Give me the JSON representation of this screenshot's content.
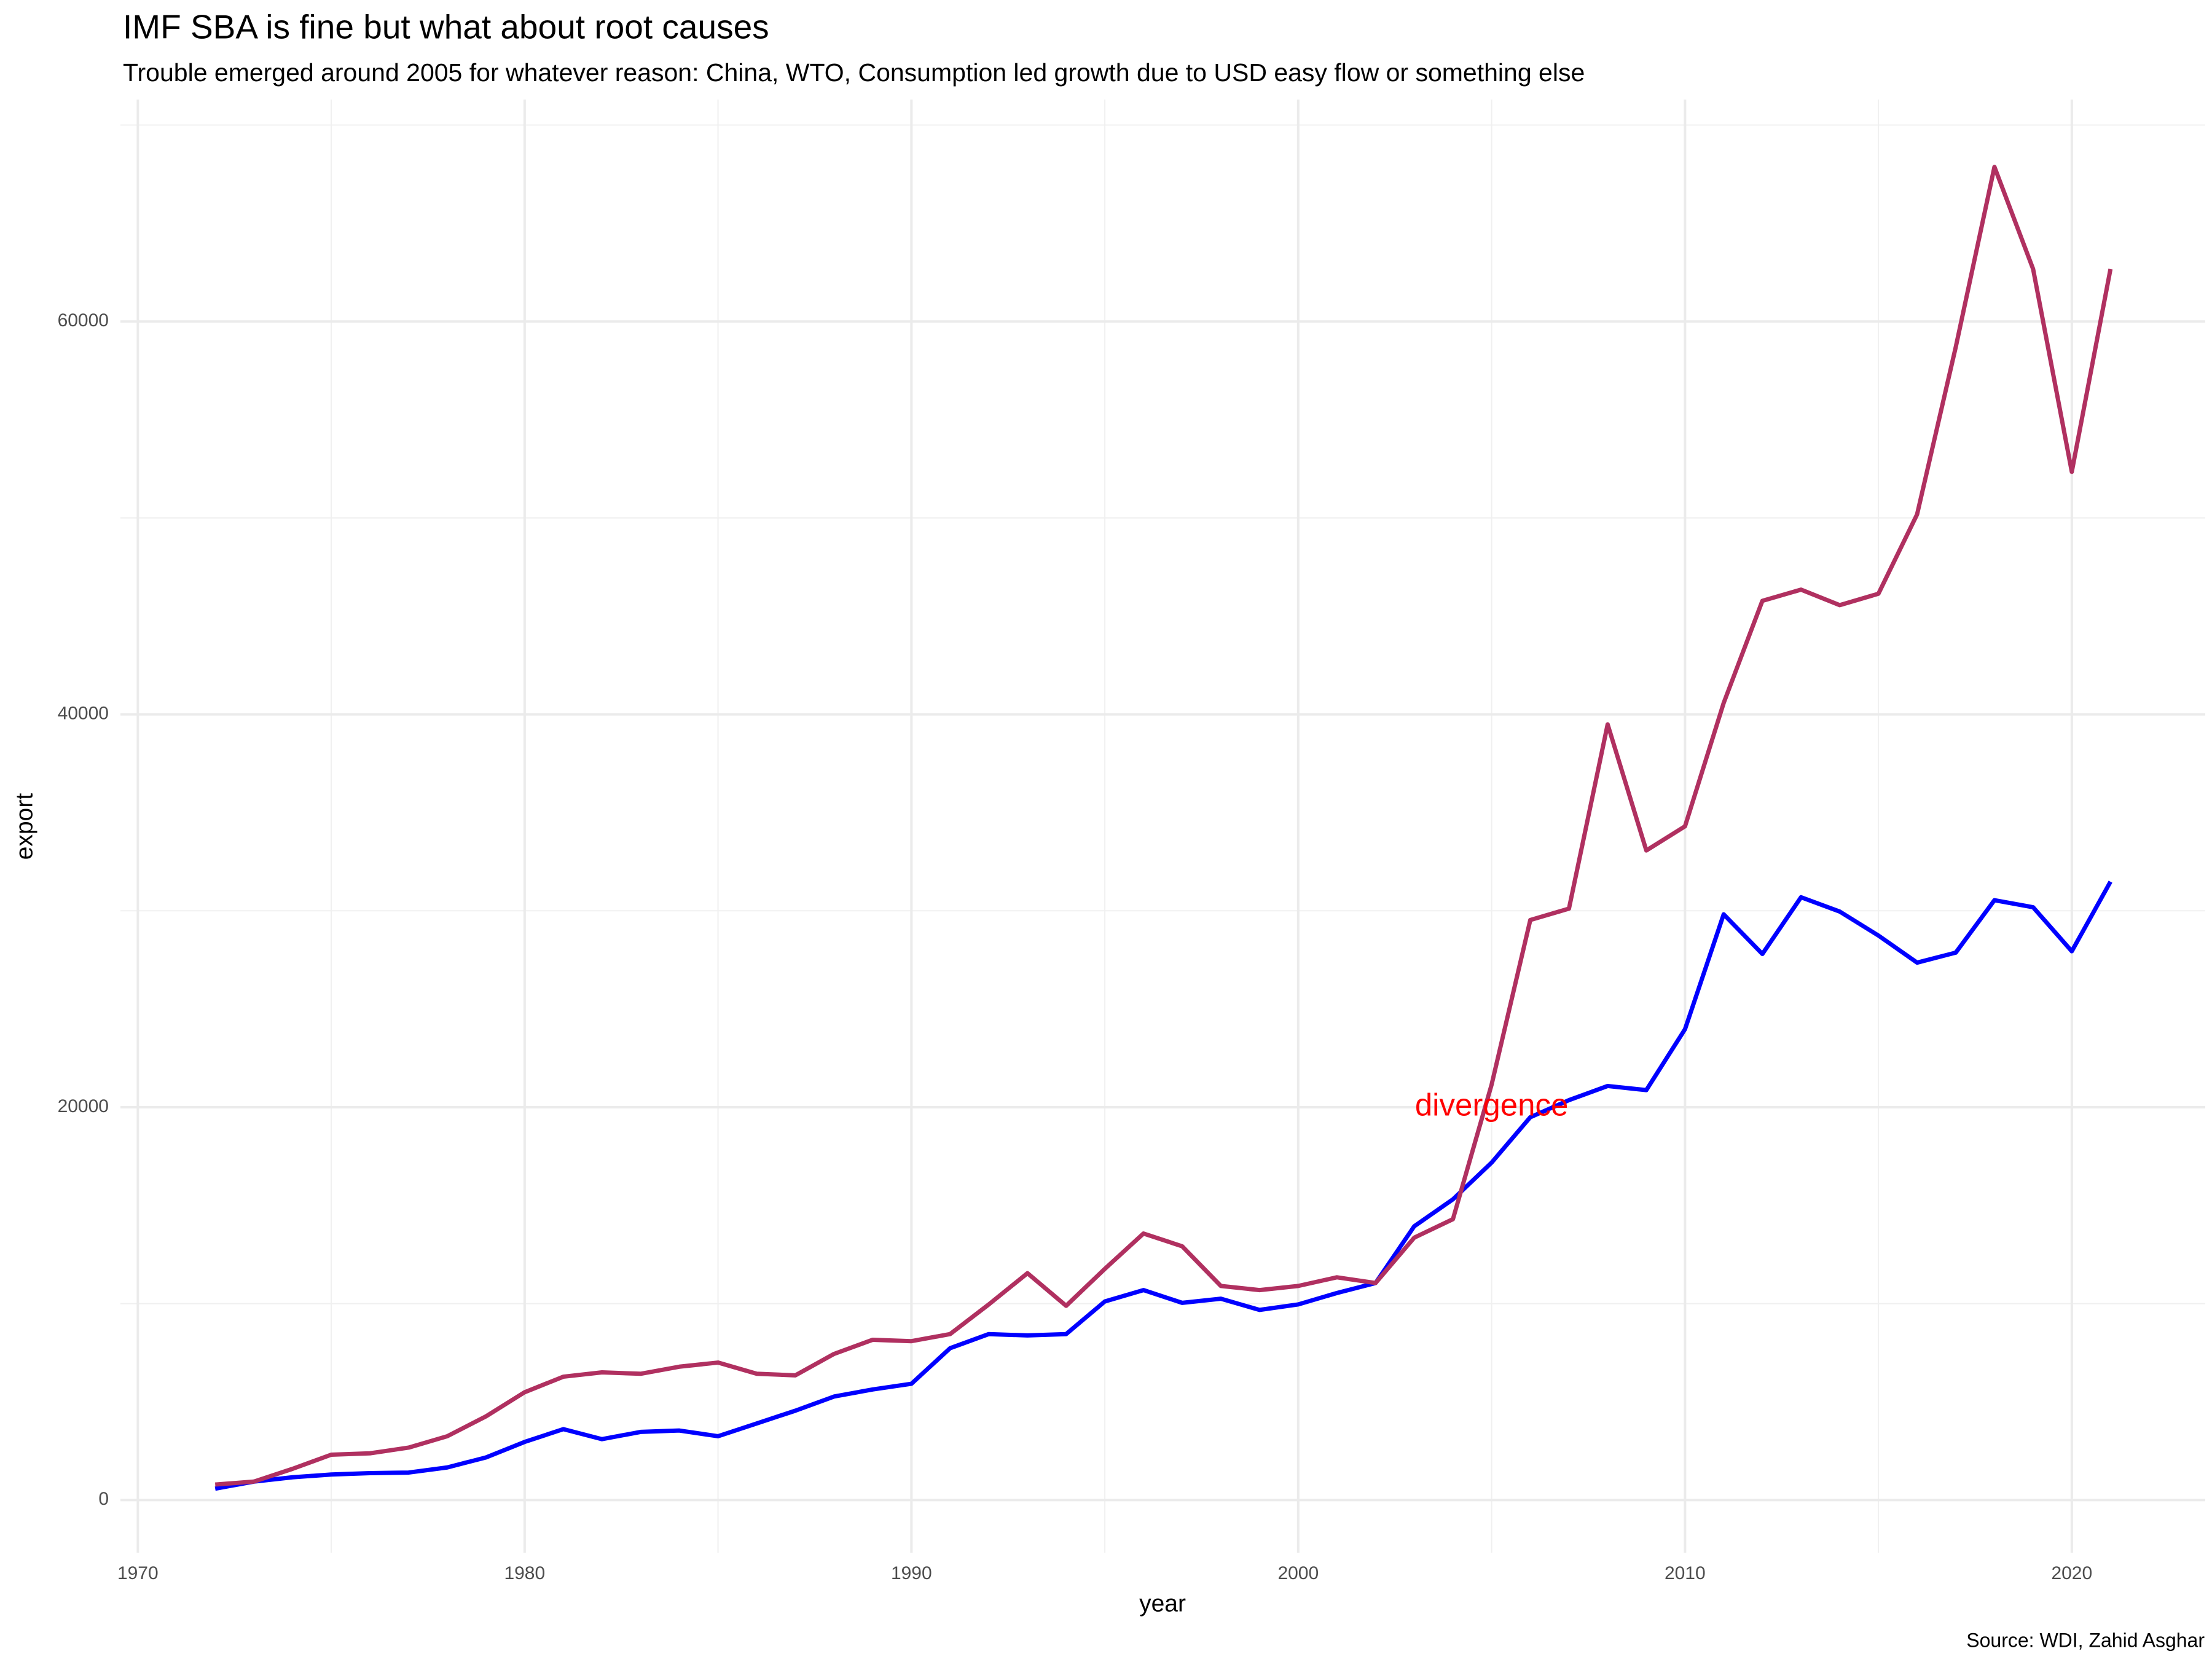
{
  "chart_data": {
    "type": "line",
    "title": "IMF SBA is fine but what about root causes",
    "subtitle": "Trouble emerged around 2005 for whatever reason: China, WTO, Consumption led growth due to USD easy flow or something else",
    "x_label": "year",
    "y_label": "export",
    "caption": "Source: WDI, Zahid Asghar",
    "x": [
      1972,
      1973,
      1974,
      1975,
      1976,
      1977,
      1978,
      1979,
      1980,
      1981,
      1982,
      1983,
      1984,
      1985,
      1986,
      1987,
      1988,
      1989,
      1990,
      1991,
      1992,
      1993,
      1994,
      1995,
      1996,
      1997,
      1998,
      1999,
      2000,
      2001,
      2002,
      2003,
      2004,
      2005,
      2006,
      2007,
      2008,
      2009,
      2010,
      2011,
      2012,
      2013,
      2014,
      2015,
      2016,
      2017,
      2018,
      2019,
      2020,
      2021
    ],
    "series": [
      {
        "color": "#0000ff",
        "values": [
          580,
          940,
          1160,
          1300,
          1370,
          1400,
          1660,
          2170,
          2960,
          3610,
          3100,
          3470,
          3540,
          3250,
          3900,
          4550,
          5270,
          5630,
          5920,
          7730,
          8450,
          8380,
          8450,
          10110,
          10690,
          10040,
          10250,
          9680,
          9960,
          10540,
          11050,
          13940,
          15310,
          17180,
          19490,
          20360,
          21080,
          20870,
          23970,
          29820,
          27800,
          30690,
          29960,
          28740,
          27360,
          27870,
          30540,
          30180,
          27940,
          31480
        ]
      },
      {
        "color": "#b03060",
        "values": [
          790,
          940,
          1590,
          2310,
          2380,
          2670,
          3250,
          4260,
          5490,
          6280,
          6500,
          6430,
          6790,
          7000,
          6430,
          6350,
          7440,
          8160,
          8090,
          8450,
          9960,
          11550,
          9890,
          11770,
          13570,
          12920,
          10900,
          10690,
          10900,
          11340,
          11050,
          13360,
          14300,
          21150,
          29530,
          30110,
          39490,
          33070,
          34300,
          40580,
          45780,
          46350,
          45560,
          46140,
          50180,
          58700,
          67870,
          62670,
          52350,
          62670
        ]
      }
    ],
    "annotation": {
      "text": "divergence",
      "x": 2005,
      "y": 20000,
      "color": "#ff0000"
    },
    "xlim": [
      1969.55,
      2023.45
    ],
    "xticks": [
      1970,
      1980,
      1990,
      2000,
      2010,
      2020
    ],
    "ylim": [
      -2680,
      71300
    ],
    "yticks": [
      0,
      20000,
      40000,
      60000
    ],
    "grid": true
  }
}
